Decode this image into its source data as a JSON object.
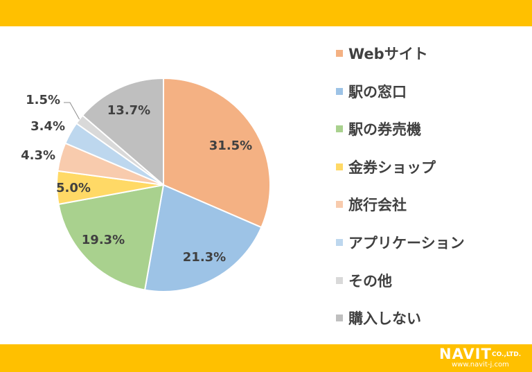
{
  "chart_data": {
    "type": "pie",
    "title": "",
    "slices": [
      {
        "name": "Webサイト",
        "value": 31.5,
        "label": "31.5%",
        "color": "#F4B183"
      },
      {
        "name": "駅の窓口",
        "value": 21.3,
        "label": "21.3%",
        "color": "#9DC3E6"
      },
      {
        "name": "駅の券売機",
        "value": 19.3,
        "label": "19.3%",
        "color": "#A9D18E"
      },
      {
        "name": "金券ショップ",
        "value": 5.0,
        "label": "5.0%",
        "color": "#FFD966"
      },
      {
        "name": "旅行会社",
        "value": 4.3,
        "label": "4.3%",
        "color": "#F8CBAD"
      },
      {
        "name": "アプリケーション",
        "value": 3.4,
        "label": "3.4%",
        "color": "#BDD7EE"
      },
      {
        "name": "その他",
        "value": 1.5,
        "label": "1.5%",
        "color": "#D9D9D9"
      },
      {
        "name": "購入しない",
        "value": 13.7,
        "label": "13.7%",
        "color": "#BFBFBF"
      }
    ],
    "start_angle": "12 o'clock",
    "direction": "clockwise",
    "legend_position": "right"
  },
  "colors": {
    "header_bar": "#FFC000",
    "footer_bar": "#FFC000",
    "label_text": "#404040"
  },
  "logo": {
    "name": "NAVIT",
    "suffix": "CO.,LTD.",
    "url": "www.navit-j.com"
  }
}
